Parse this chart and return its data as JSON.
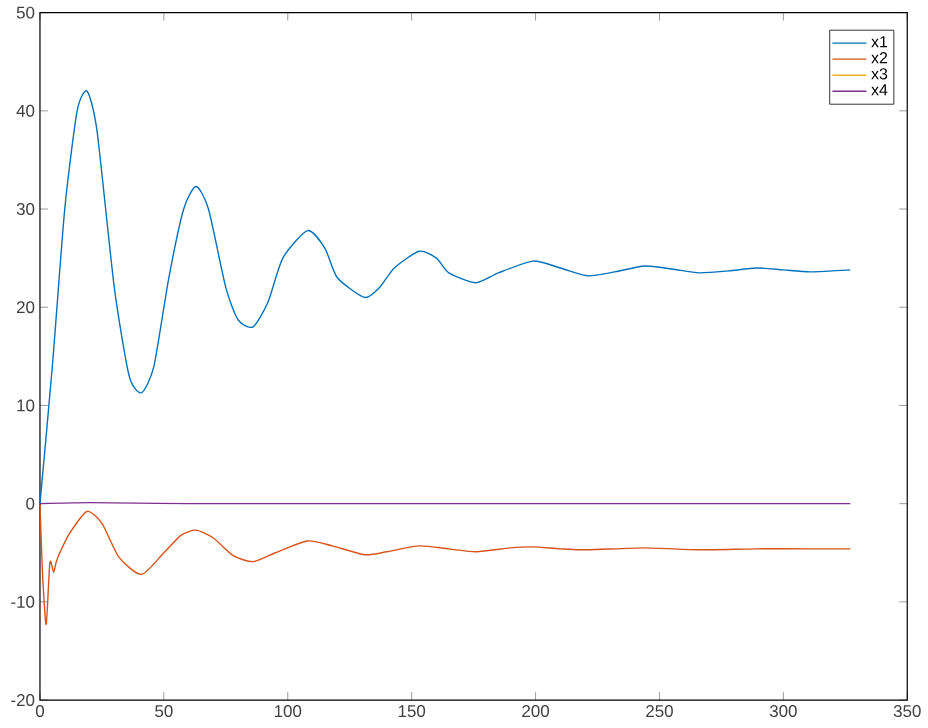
{
  "chart_data": {
    "type": "line",
    "xlim": [
      0,
      350
    ],
    "xticks": [
      0,
      50,
      100,
      150,
      200,
      250,
      300,
      350
    ],
    "ylim": [
      -20,
      50
    ],
    "yticks": [
      -20,
      -10,
      0,
      10,
      20,
      30,
      40,
      50
    ],
    "grid": false,
    "legend": "top right",
    "marker": "none",
    "line_style": "solid",
    "series": [
      {
        "name": "x1",
        "color": "#0072bd",
        "x": [
          0,
          5,
          10,
          15,
          19,
          23,
          30,
          36,
          41,
          46,
          52,
          58,
          63,
          68,
          75,
          80,
          86,
          92,
          98,
          108,
          115,
          120,
          131,
          137,
          143,
          153,
          160,
          165,
          176,
          185,
          199,
          210,
          221,
          232,
          244,
          255,
          266,
          278,
          289,
          300,
          311,
          327
        ],
        "values": [
          0,
          14,
          30,
          40,
          42,
          38,
          22,
          13,
          11.3,
          14,
          23,
          30,
          32.3,
          30,
          22,
          18.7,
          18,
          20.5,
          25,
          27.8,
          26,
          23,
          21,
          22,
          24,
          25.7,
          25,
          23.5,
          22.5,
          23.5,
          24.7,
          24,
          23.2,
          23.6,
          24.2,
          23.9,
          23.5,
          23.7,
          24,
          23.8,
          23.6,
          23.8
        ]
      },
      {
        "name": "x2",
        "color": "#d95319",
        "x": [
          0,
          1,
          2.5,
          4,
          5.5,
          6.5,
          8,
          12,
          19,
          25,
          32,
          41,
          50,
          57,
          63,
          70,
          78,
          86,
          95,
          108,
          118,
          131,
          140,
          153,
          165,
          176,
          190,
          199,
          210,
          221,
          244,
          266,
          289,
          311,
          327
        ],
        "values": [
          0,
          -7,
          -12.3,
          -6,
          -7,
          -6,
          -5,
          -3,
          -0.8,
          -2,
          -5.5,
          -7.2,
          -5,
          -3.2,
          -2.7,
          -3.5,
          -5.3,
          -5.9,
          -5,
          -3.8,
          -4.3,
          -5.2,
          -4.9,
          -4.3,
          -4.6,
          -4.9,
          -4.5,
          -4.4,
          -4.6,
          -4.7,
          -4.5,
          -4.7,
          -4.6,
          -4.6,
          -4.6
        ]
      },
      {
        "name": "x3",
        "color": "#edb120"
      },
      {
        "name": "x4",
        "color": "#7e2f8e",
        "x": [
          0,
          20,
          60,
          150,
          327
        ],
        "values": [
          0,
          0.1,
          0,
          0,
          0
        ]
      }
    ]
  }
}
